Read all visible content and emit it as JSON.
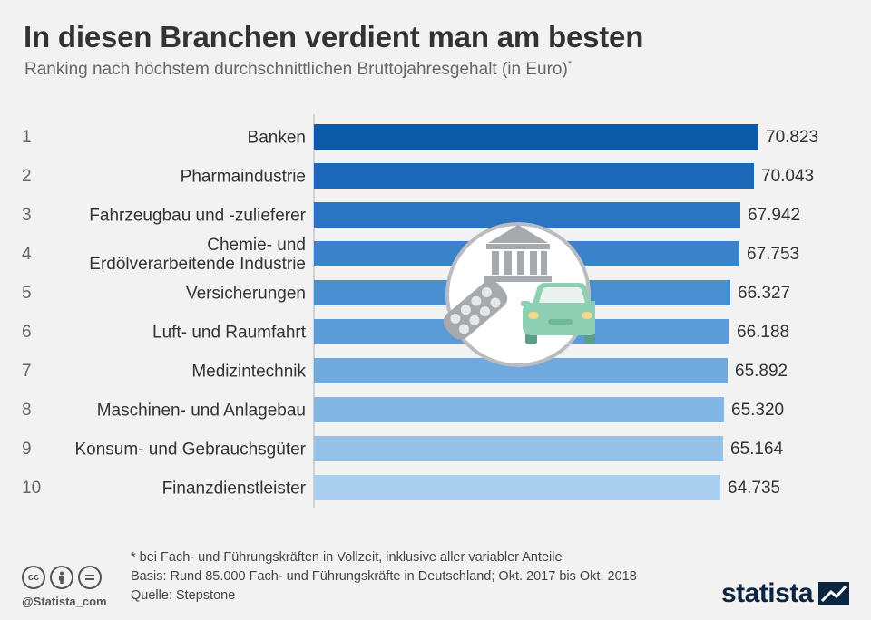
{
  "header": {
    "title": "In diesen Branchen verdient man am besten",
    "subtitle": "Ranking nach höchstem durchschnittlichen Bruttojahresgehalt (in Euro)",
    "subtitle_mark": "*"
  },
  "chart_data": {
    "type": "bar",
    "orientation": "horizontal",
    "title": "In diesen Branchen verdient man am besten",
    "subtitle": "Ranking nach höchstem durchschnittlichen Bruttojahresgehalt (in Euro)*",
    "xlabel": "",
    "ylabel": "",
    "xlim": [
      0,
      70823
    ],
    "ranks": [
      "1",
      "2",
      "3",
      "4",
      "5",
      "6",
      "7",
      "8",
      "9",
      "10"
    ],
    "categories": [
      [
        "Banken"
      ],
      [
        "Pharmaindustrie"
      ],
      [
        "Fahrzeugbau und -zulieferer"
      ],
      [
        "Chemie- und",
        "Erdölverarbeitende Industrie"
      ],
      [
        "Versicherungen"
      ],
      [
        "Luft- und Raumfahrt"
      ],
      [
        "Medizintechnik"
      ],
      [
        "Maschinen- und Anlagebau"
      ],
      [
        "Konsum- und Gebrauchsgüter"
      ],
      [
        "Finanzdienstleister"
      ]
    ],
    "values": [
      70823,
      70043,
      67942,
      67753,
      66327,
      66188,
      65892,
      65320,
      65164,
      64735
    ],
    "value_labels": [
      "70.823",
      "70.043",
      "67.942",
      "67.753",
      "66.327",
      "66.188",
      "65.892",
      "65.320",
      "65.164",
      "64.735"
    ],
    "bar_colors": [
      "#0a5aa8",
      "#1a68b7",
      "#2a75c2",
      "#3a82ca",
      "#4a8fd2",
      "#5b9bd8",
      "#6fa9de",
      "#82b6e4",
      "#96c2e9",
      "#a9ceee"
    ]
  },
  "footer": {
    "notes": [
      "* bei Fach- und Führungskräften in Vollzeit, inklusive aller variabler Anteile",
      "Basis: Rund 85.000 Fach- und Führungskräfte in Deutschland; Okt. 2017 bis Okt. 2018",
      "Quelle: Stepstone"
    ],
    "handle": "@Statista_com",
    "brand": "statista",
    "license_icons": [
      "cc",
      "by",
      "nd"
    ]
  }
}
